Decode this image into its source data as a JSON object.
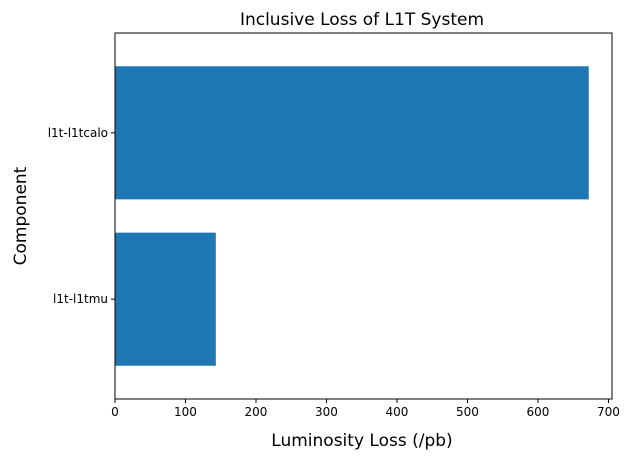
{
  "chart_data": {
    "type": "bar",
    "orientation": "horizontal",
    "title": "Inclusive Loss of L1T System",
    "xlabel": "Luminosity Loss (/pb)",
    "ylabel": "Component",
    "categories": [
      "l1t-l1tcalo",
      "l1t-l1tmu"
    ],
    "values": [
      672,
      143
    ],
    "xlim": [
      0,
      705
    ],
    "xticks": [
      0,
      100,
      200,
      300,
      400,
      500,
      600,
      700
    ],
    "bar_color": "#1f77b4",
    "grid": false,
    "legend": "none"
  }
}
